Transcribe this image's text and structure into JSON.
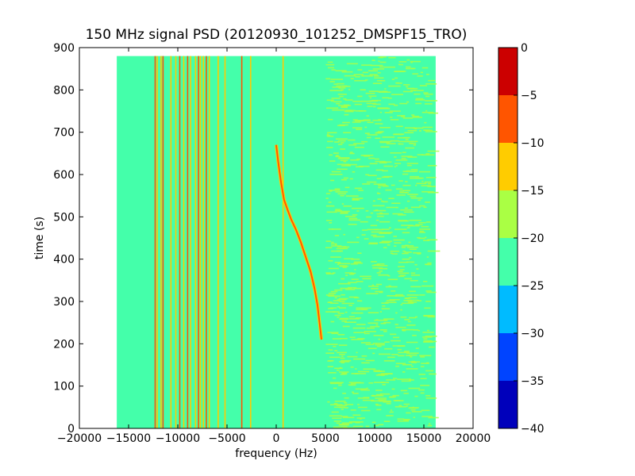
{
  "chart_data": {
    "type": "heatmap",
    "title": "150 MHz signal PSD (20120930_101252_DMSPF15_TRO)",
    "xlabel": "frequency (Hz)",
    "ylabel": "time (s)",
    "xlim": [
      -20000,
      20000
    ],
    "ylim": [
      0,
      900
    ],
    "x_ticks": [
      -20000,
      -15000,
      -10000,
      -5000,
      0,
      5000,
      10000,
      15000,
      20000
    ],
    "y_ticks": [
      0,
      100,
      200,
      300,
      400,
      500,
      600,
      700,
      800,
      900
    ],
    "data_extent": {
      "x": [
        -16200,
        16200
      ],
      "t": [
        0,
        880
      ]
    },
    "background_level": -22.5,
    "colorbar": {
      "levels": [
        -40,
        -35,
        -30,
        -25,
        -20,
        -15,
        -10,
        -5,
        0
      ],
      "colors": [
        "#0000bb",
        "#0044ff",
        "#00bbff",
        "#44ffaa",
        "#aaff44",
        "#ffcc00",
        "#ff5500",
        "#cc0000"
      ],
      "tick_labels": [
        "0",
        "−5",
        "−10",
        "−15",
        "−20",
        "−25",
        "−30",
        "−35",
        "−40"
      ]
    },
    "vertical_lines": [
      {
        "x": -12300,
        "level": -7.5
      },
      {
        "x": -12100,
        "level": -12.5
      },
      {
        "x": -11700,
        "level": -12.5
      },
      {
        "x": -11500,
        "level": -7.5
      },
      {
        "x": -10700,
        "level": -12.5
      },
      {
        "x": -10200,
        "level": -12.5
      },
      {
        "x": -9800,
        "level": -7.5
      },
      {
        "x": -9400,
        "level": -12.5
      },
      {
        "x": -9000,
        "level": -7.5
      },
      {
        "x": -8700,
        "level": -12.5
      },
      {
        "x": -8200,
        "level": -12.5
      },
      {
        "x": -7900,
        "level": -7.5
      },
      {
        "x": -7700,
        "level": -12.5
      },
      {
        "x": -7400,
        "level": -12.5
      },
      {
        "x": -7100,
        "level": -7.5
      },
      {
        "x": -6800,
        "level": -12.5
      },
      {
        "x": -5900,
        "level": -12.5
      },
      {
        "x": -5200,
        "level": -12.5
      },
      {
        "x": -3500,
        "level": -7.5
      },
      {
        "x": -2600,
        "level": -12.5
      },
      {
        "x": 700,
        "level": -12.5
      }
    ],
    "drift_trace": [
      [
        0,
        670
      ],
      [
        200,
        630
      ],
      [
        500,
        580
      ],
      [
        800,
        540
      ],
      [
        1100,
        520
      ],
      [
        1500,
        495
      ],
      [
        2000,
        470
      ],
      [
        2500,
        440
      ],
      [
        3000,
        405
      ],
      [
        3500,
        370
      ],
      [
        3900,
        330
      ],
      [
        4200,
        290
      ],
      [
        4400,
        250
      ],
      [
        4600,
        210
      ]
    ],
    "drift_level": -7.5,
    "noise_region": {
      "x": [
        5000,
        15500
      ],
      "level": -17.5
    }
  }
}
